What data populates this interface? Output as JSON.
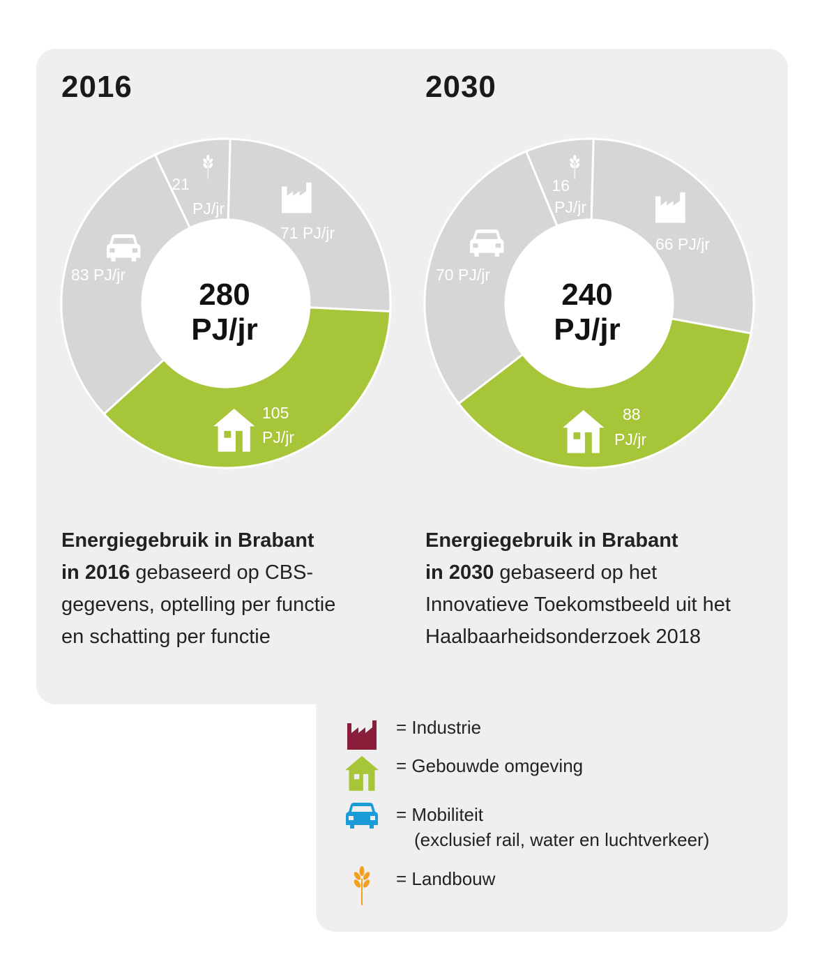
{
  "colors": {
    "industrie": "#8a1e3a",
    "gebouwde_omgeving": "#a7c539",
    "mobiliteit": "#1a9bd7",
    "landbouw": "#f2a11f",
    "segment_grey": "#d6d6d6",
    "segment_green": "#a7c539"
  },
  "chart_data": [
    {
      "type": "pie",
      "title": "2016",
      "center_value": "280",
      "center_unit": "PJ/jr",
      "unit": "PJ/jr",
      "slices": [
        {
          "name": "Industrie",
          "value": 71,
          "label": "71 PJ/jr",
          "icon": "factory-icon"
        },
        {
          "name": "Gebouwde omgeving",
          "value": 105,
          "label_line1": "105",
          "label_line2": "PJ/jr",
          "icon": "house-icon"
        },
        {
          "name": "Mobiliteit",
          "value": 83,
          "label": "83 PJ/jr",
          "icon": "car-icon"
        },
        {
          "name": "Landbouw",
          "value": 21,
          "label_line1": "21",
          "label_line2": "PJ/jr",
          "icon": "wheat-icon"
        }
      ]
    },
    {
      "type": "pie",
      "title": "2030",
      "center_value": "240",
      "center_unit": "PJ/jr",
      "unit": "PJ/jr",
      "slices": [
        {
          "name": "Industrie",
          "value": 66,
          "label": "66 PJ/jr",
          "icon": "factory-icon"
        },
        {
          "name": "Gebouwde omgeving",
          "value": 88,
          "label_line1": "88",
          "label_line2": "PJ/jr",
          "icon": "house-icon"
        },
        {
          "name": "Mobiliteit",
          "value": 70,
          "label": "70 PJ/jr",
          "icon": "car-icon"
        },
        {
          "name": "Landbouw",
          "value": 16,
          "label_line1": "16",
          "label_line2": "PJ/jr",
          "icon": "wheat-icon"
        }
      ]
    }
  ],
  "descriptions": {
    "left": {
      "bold_1": "Energiegebruik in Brabant",
      "bold_2": "in 2016",
      "rest_2": " gebaseerd op CBS-",
      "line_3": "gegevens, optelling per functie",
      "line_4": "en schatting per functie"
    },
    "right": {
      "bold_1": "Energiegebruik in Brabant",
      "bold_2": "in 2030",
      "rest_2": " gebaseerd op het",
      "line_3": "Innovatieve Toekomstbeeld uit het",
      "line_4": "Haalbaarheidsonderzoek 2018"
    }
  },
  "legend": {
    "industrie": "= Industrie",
    "gebouwde_omgeving": "= Gebouwde omgeving",
    "mobiliteit_line1": "= Mobiliteit",
    "mobiliteit_line2": "(exclusief rail, water en luchtverkeer)",
    "landbouw": "= Landbouw"
  }
}
